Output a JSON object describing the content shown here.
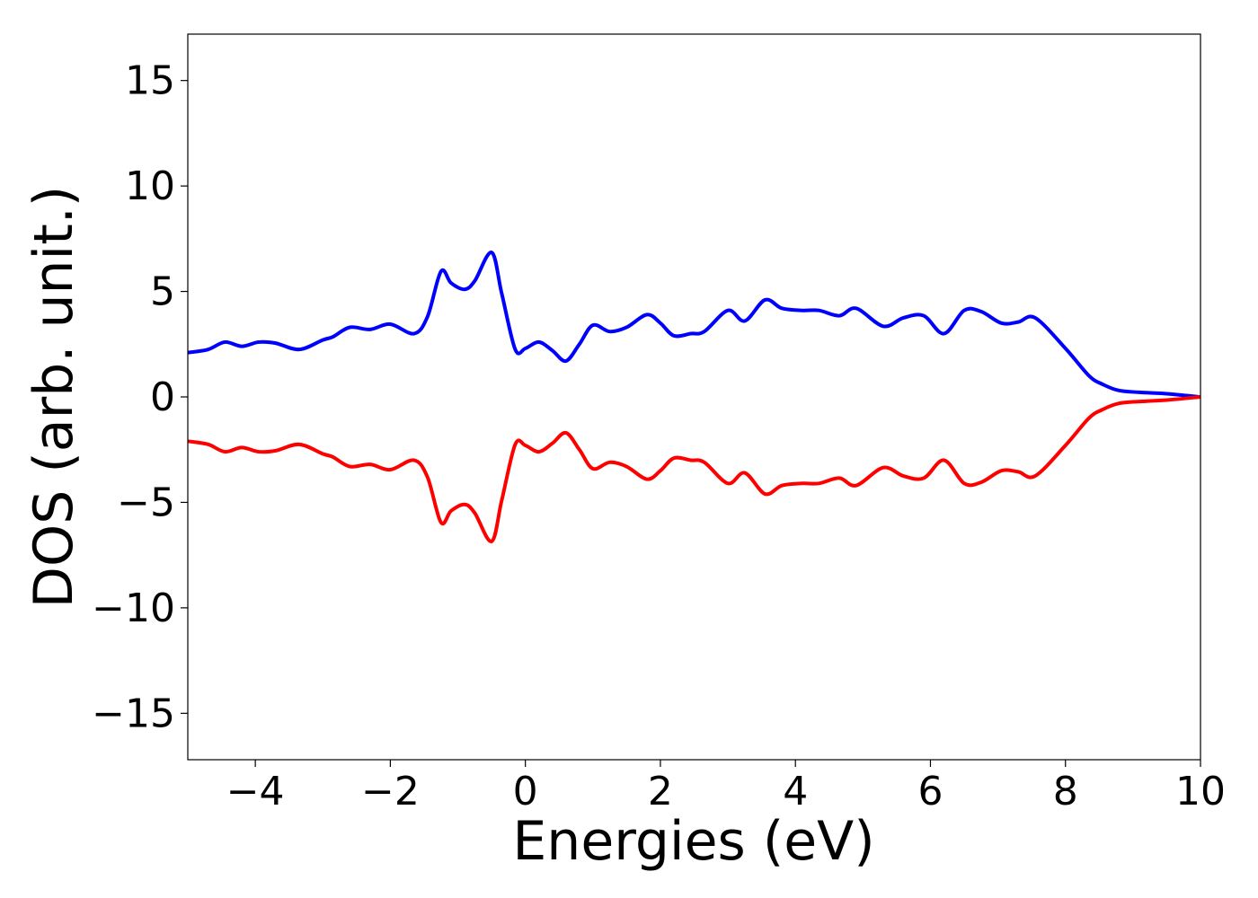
{
  "chart_data": {
    "type": "line",
    "xlabel": "Energies (eV)",
    "ylabel": "DOS (arb. unit.)",
    "xlim": [
      -5,
      10
    ],
    "ylim": [
      -17.2,
      17.2
    ],
    "xticks": [
      -4,
      -2,
      0,
      2,
      4,
      6,
      8,
      10
    ],
    "xtick_labels": [
      "−4",
      "−2",
      "0",
      "2",
      "4",
      "6",
      "8",
      "10"
    ],
    "yticks": [
      -15,
      -10,
      -5,
      0,
      5,
      10,
      15
    ],
    "ytick_labels": [
      "−15",
      "−10",
      "−5",
      "0",
      "5",
      "10",
      "15"
    ],
    "grid": false,
    "series": [
      {
        "color": "#0000ff",
        "x": [
          -5.0,
          -4.7,
          -4.45,
          -4.2,
          -3.95,
          -3.7,
          -3.35,
          -3.0,
          -2.85,
          -2.6,
          -2.3,
          -2.0,
          -1.65,
          -1.45,
          -1.25,
          -1.1,
          -0.9,
          -0.75,
          -0.5,
          -0.35,
          -0.15,
          0.0,
          0.2,
          0.4,
          0.6,
          0.8,
          1.0,
          1.25,
          1.5,
          1.8,
          2.0,
          2.2,
          2.45,
          2.65,
          3.0,
          3.25,
          3.55,
          3.8,
          4.1,
          4.35,
          4.65,
          4.9,
          5.3,
          5.6,
          5.9,
          6.2,
          6.5,
          6.75,
          7.05,
          7.3,
          7.55,
          8.0,
          8.35,
          8.55,
          8.8,
          9.2,
          9.5,
          10.0
        ],
        "y": [
          2.1,
          2.25,
          2.6,
          2.4,
          2.6,
          2.55,
          2.25,
          2.7,
          2.85,
          3.3,
          3.2,
          3.45,
          3.0,
          3.8,
          5.95,
          5.4,
          5.1,
          5.5,
          6.85,
          4.9,
          2.25,
          2.3,
          2.6,
          2.2,
          1.7,
          2.5,
          3.4,
          3.1,
          3.3,
          3.9,
          3.5,
          2.9,
          3.0,
          3.1,
          4.1,
          3.6,
          4.6,
          4.2,
          4.1,
          4.1,
          3.85,
          4.2,
          3.35,
          3.75,
          3.85,
          3.0,
          4.1,
          4.05,
          3.5,
          3.55,
          3.75,
          2.3,
          1.0,
          0.6,
          0.3,
          0.2,
          0.15,
          0.0
        ]
      },
      {
        "color": "#ff0000",
        "x": [
          -5.0,
          -4.7,
          -4.45,
          -4.2,
          -3.95,
          -3.7,
          -3.35,
          -3.0,
          -2.85,
          -2.6,
          -2.3,
          -2.0,
          -1.65,
          -1.45,
          -1.25,
          -1.1,
          -0.9,
          -0.75,
          -0.5,
          -0.35,
          -0.15,
          0.0,
          0.2,
          0.4,
          0.6,
          0.8,
          1.0,
          1.25,
          1.5,
          1.8,
          2.0,
          2.2,
          2.45,
          2.65,
          3.0,
          3.25,
          3.55,
          3.8,
          4.1,
          4.35,
          4.65,
          4.9,
          5.3,
          5.6,
          5.9,
          6.2,
          6.5,
          6.75,
          7.05,
          7.3,
          7.55,
          8.0,
          8.35,
          8.55,
          8.8,
          9.2,
          9.5,
          10.0
        ],
        "y": [
          -2.1,
          -2.25,
          -2.6,
          -2.4,
          -2.6,
          -2.55,
          -2.25,
          -2.7,
          -2.85,
          -3.3,
          -3.2,
          -3.45,
          -3.0,
          -3.8,
          -5.95,
          -5.4,
          -5.1,
          -5.5,
          -6.85,
          -4.9,
          -2.25,
          -2.3,
          -2.6,
          -2.2,
          -1.7,
          -2.5,
          -3.4,
          -3.1,
          -3.3,
          -3.9,
          -3.5,
          -2.9,
          -3.0,
          -3.1,
          -4.1,
          -3.6,
          -4.6,
          -4.2,
          -4.1,
          -4.1,
          -3.85,
          -4.2,
          -3.35,
          -3.75,
          -3.85,
          -3.0,
          -4.1,
          -4.05,
          -3.5,
          -3.55,
          -3.75,
          -2.3,
          -1.0,
          -0.6,
          -0.3,
          -0.2,
          -0.15,
          0.0
        ]
      }
    ]
  }
}
